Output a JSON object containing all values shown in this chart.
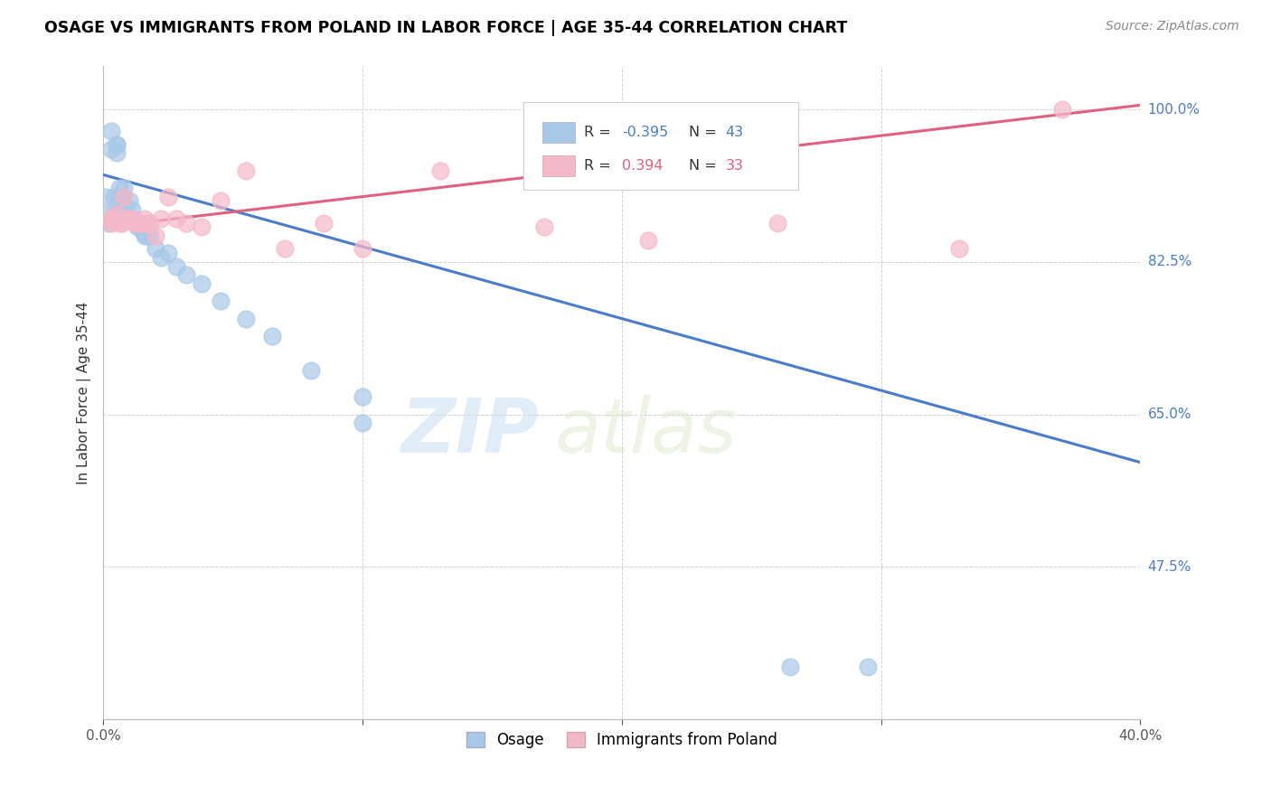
{
  "title": "OSAGE VS IMMIGRANTS FROM POLAND IN LABOR FORCE | AGE 35-44 CORRELATION CHART",
  "source": "Source: ZipAtlas.com",
  "ylabel": "In Labor Force | Age 35-44",
  "xlim": [
    0.0,
    0.4
  ],
  "ylim": [
    0.3,
    1.05
  ],
  "ytick_positions": [
    0.475,
    0.65,
    0.825,
    1.0
  ],
  "ytick_labels": [
    "47.5%",
    "65.0%",
    "82.5%",
    "100.0%"
  ],
  "legend_r_blue": "-0.395",
  "legend_n_blue": "43",
  "legend_r_pink": "0.394",
  "legend_n_pink": "33",
  "blue_color": "#a8c8e8",
  "pink_color": "#f5b8c8",
  "blue_line_color": "#4a7cc7",
  "pink_line_color": "#e06080",
  "watermark_zip": "ZIP",
  "watermark_atlas": "atlas",
  "blue_line_x0": 0.0,
  "blue_line_y0": 0.925,
  "blue_line_x1": 0.4,
  "blue_line_y1": 0.595,
  "pink_line_x0": 0.0,
  "pink_line_y0": 0.865,
  "pink_line_x1": 0.4,
  "pink_line_y1": 1.005,
  "osage_x": [
    0.001,
    0.002,
    0.002,
    0.003,
    0.003,
    0.004,
    0.004,
    0.005,
    0.005,
    0.005,
    0.006,
    0.006,
    0.007,
    0.007,
    0.008,
    0.008,
    0.009,
    0.009,
    0.01,
    0.01,
    0.011,
    0.011,
    0.012,
    0.013,
    0.014,
    0.015,
    0.016,
    0.017,
    0.018,
    0.02,
    0.022,
    0.025,
    0.028,
    0.032,
    0.038,
    0.045,
    0.055,
    0.065,
    0.08,
    0.1,
    0.1,
    0.265,
    0.295
  ],
  "osage_y": [
    0.9,
    0.88,
    0.87,
    0.975,
    0.955,
    0.9,
    0.88,
    0.96,
    0.96,
    0.95,
    0.91,
    0.895,
    0.9,
    0.88,
    0.91,
    0.89,
    0.88,
    0.875,
    0.895,
    0.875,
    0.885,
    0.875,
    0.87,
    0.865,
    0.87,
    0.86,
    0.855,
    0.855,
    0.855,
    0.84,
    0.83,
    0.835,
    0.82,
    0.81,
    0.8,
    0.78,
    0.76,
    0.74,
    0.7,
    0.67,
    0.64,
    0.36,
    0.36
  ],
  "poland_x": [
    0.002,
    0.003,
    0.004,
    0.005,
    0.006,
    0.007,
    0.008,
    0.009,
    0.01,
    0.011,
    0.012,
    0.013,
    0.015,
    0.016,
    0.017,
    0.018,
    0.02,
    0.022,
    0.025,
    0.028,
    0.032,
    0.038,
    0.045,
    0.055,
    0.07,
    0.085,
    0.1,
    0.13,
    0.17,
    0.21,
    0.26,
    0.33,
    0.37
  ],
  "poland_y": [
    0.875,
    0.87,
    0.875,
    0.88,
    0.87,
    0.87,
    0.9,
    0.875,
    0.875,
    0.875,
    0.87,
    0.87,
    0.87,
    0.875,
    0.87,
    0.87,
    0.855,
    0.875,
    0.9,
    0.875,
    0.87,
    0.865,
    0.895,
    0.93,
    0.84,
    0.87,
    0.84,
    0.93,
    0.865,
    0.85,
    0.87,
    0.84,
    1.0
  ]
}
